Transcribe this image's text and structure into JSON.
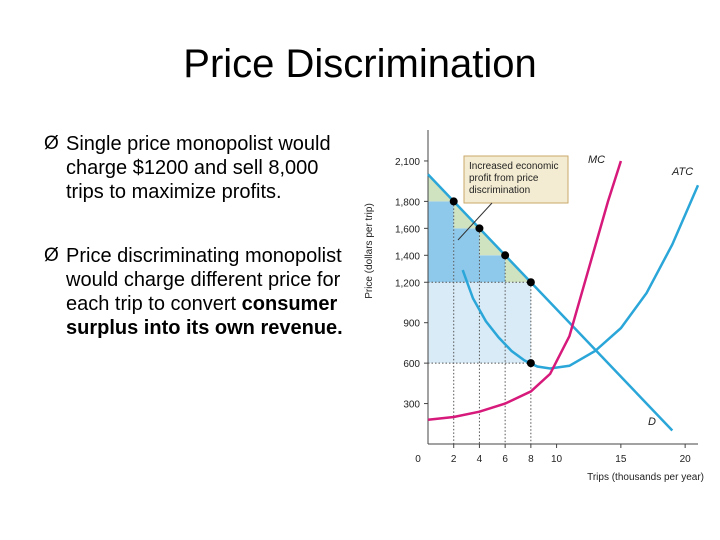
{
  "slide": {
    "title": "Price Discrimination",
    "bullet_marker": "Ø",
    "bullets": [
      {
        "text": "Single price monopolist would charge $1200 and sell 8,000 trips to maximize profits."
      },
      {
        "text_normal": "Price discriminating monopolist would charge different price for each trip to convert ",
        "text_bold": "consumer surplus into its own revenue."
      }
    ]
  },
  "colors": {
    "demand": "#2aa6d8",
    "mc": "#d6197a",
    "atc": "#2aa6d8",
    "profit_green": "#cfe3c0",
    "profit_blue": "#8ec9ec",
    "light_blue": "#d8ebf7",
    "callout_fill": "#f4ecd2",
    "axis": "#444444"
  },
  "chart_data": {
    "type": "line",
    "xlabel": "Trips (thousands per year)",
    "ylabel": "Price (dollars per trip)",
    "xlim": [
      0,
      21
    ],
    "ylim": [
      0,
      2300
    ],
    "x_ticks": [
      0,
      2,
      4,
      6,
      8,
      10,
      15,
      20
    ],
    "y_ticks": [
      300,
      600,
      900,
      1200,
      1400,
      1600,
      1800,
      2100
    ],
    "y_tick_labels": [
      "300",
      "600",
      "900",
      "1,200",
      "1,400",
      "1,600",
      "1,800",
      "2,100"
    ],
    "series": [
      {
        "name": "D",
        "x": [
          0,
          19
        ],
        "y": [
          2000,
          100
        ]
      },
      {
        "name": "MC",
        "x": [
          0,
          2,
          4,
          6,
          8,
          9.5,
          11,
          12.5,
          14,
          15
        ],
        "y": [
          180,
          200,
          240,
          300,
          390,
          520,
          800,
          1300,
          1800,
          2100
        ]
      },
      {
        "name": "ATC",
        "x": [
          2.7,
          3.5,
          4.5,
          5.5,
          6.5,
          7.5,
          8.5,
          9.5,
          11,
          13,
          15,
          17,
          19,
          21
        ],
        "y": [
          1290,
          1080,
          910,
          790,
          690,
          620,
          575,
          560,
          580,
          690,
          860,
          1120,
          1480,
          1920
        ]
      }
    ],
    "price_points": [
      {
        "x": 2,
        "y": 1800
      },
      {
        "x": 4,
        "y": 1600
      },
      {
        "x": 6,
        "y": 1400
      },
      {
        "x": 8,
        "y": 1200
      }
    ],
    "atc_point": {
      "x": 8,
      "y": 600
    },
    "annotations": [
      {
        "text": [
          "Increased economic",
          "profit from price",
          "discrimination"
        ]
      },
      {
        "text": [
          "MC"
        ]
      },
      {
        "text": [
          "ATC"
        ]
      },
      {
        "text": [
          "D"
        ]
      }
    ]
  }
}
